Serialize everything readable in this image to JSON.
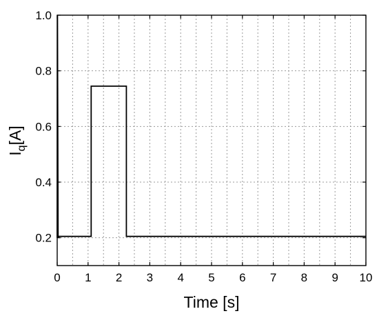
{
  "chart_data": {
    "type": "line",
    "title": "",
    "xlabel": "Time [s]",
    "ylabel": {
      "main": "I",
      "subscript": "q",
      "unit": "[A]"
    },
    "xlim": [
      0,
      10
    ],
    "ylim": [
      0.1,
      1.0
    ],
    "xticks": [
      0,
      1,
      2,
      3,
      4,
      5,
      6,
      7,
      8,
      9,
      10
    ],
    "yticks": [
      0.2,
      0.4,
      0.6,
      0.8,
      1.0
    ],
    "xtick_labels": [
      "0",
      "1",
      "2",
      "3",
      "4",
      "5",
      "6",
      "7",
      "8",
      "9",
      "10"
    ],
    "ytick_labels": [
      "0.2",
      "0.4",
      "0.6",
      "0.8",
      "1.0"
    ],
    "grid": true,
    "minor_x_interval": 0.5,
    "series": [
      {
        "color": "#000000",
        "x": [
          0.0,
          0.01,
          0.03,
          0.05,
          1.1,
          1.1,
          2.24,
          2.24,
          10.0
        ],
        "y": [
          0.2,
          1.0,
          0.2,
          0.205,
          0.205,
          0.745,
          0.745,
          0.205,
          0.205
        ]
      }
    ]
  }
}
